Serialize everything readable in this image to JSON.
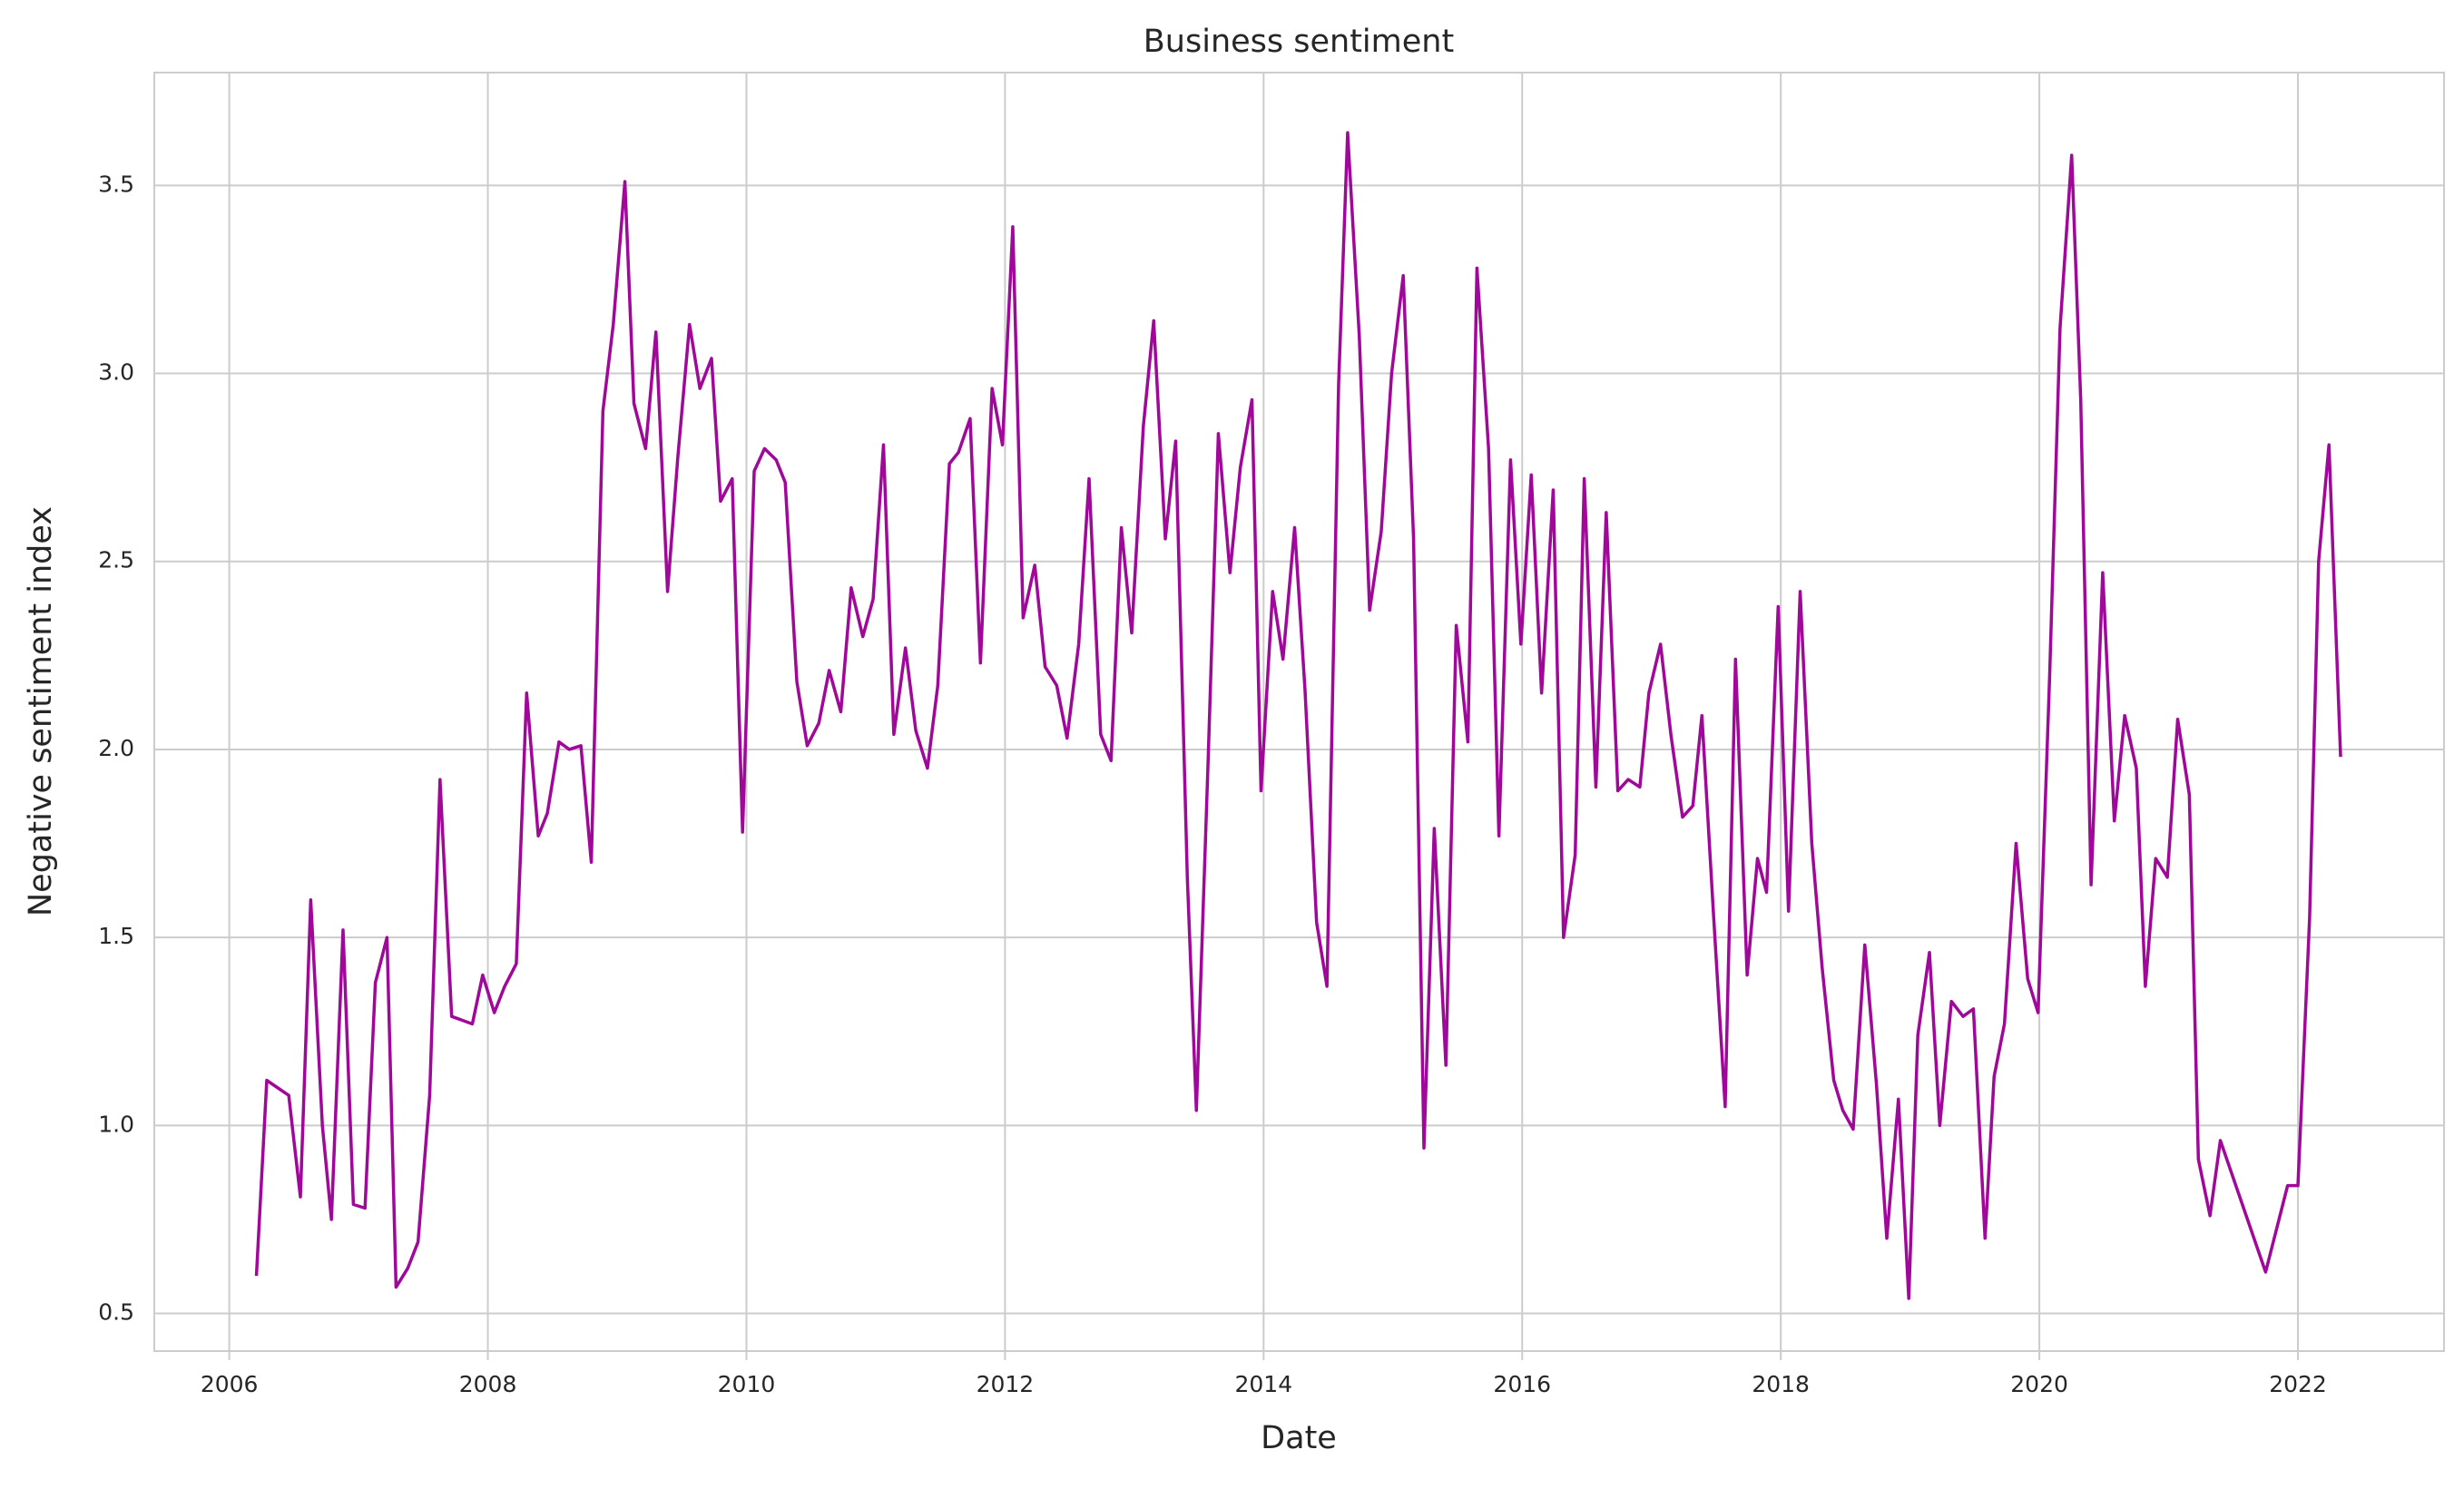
{
  "chart_data": {
    "type": "line",
    "title": "Business sentiment",
    "x_label": "Date",
    "y_label": "Negative sentiment index",
    "color": "#a0089a",
    "grid": true,
    "xlim": [
      2005.42,
      2023.13
    ],
    "xticks": [
      2006,
      2008,
      2010,
      2012,
      2014,
      2016,
      2018,
      2020,
      2022
    ],
    "ylim": [
      0.4,
      3.8
    ],
    "yticks": [
      0.5,
      {
        "value": 1,
        "label": "1.0"
      },
      1.5,
      {
        "value": 2,
        "label": "2.0"
      },
      2.5,
      {
        "value": 3,
        "label": "3.0"
      },
      3.5
    ],
    "x": [
      2006.21,
      2006.29,
      2006.46,
      2006.55,
      2006.63,
      2006.72,
      2006.79,
      2006.88,
      2006.96,
      2007.05,
      2007.13,
      2007.22,
      2007.29,
      2007.38,
      2007.46,
      2007.55,
      2007.63,
      2007.72,
      2007.88,
      2007.96,
      2008.05,
      2008.13,
      2008.22,
      2008.3,
      2008.39,
      2008.46,
      2008.55,
      2008.63,
      2008.72,
      2008.8,
      2008.89,
      2008.97,
      2009.06,
      2009.13,
      2009.22,
      2009.3,
      2009.39,
      2009.47,
      2009.56,
      2009.64,
      2009.73,
      2009.8,
      2009.89,
      2009.97,
      2010.06,
      2010.14,
      2010.23,
      2010.3,
      2010.39,
      2010.47,
      2010.56,
      2010.64,
      2010.73,
      2010.81,
      2010.9,
      2010.98,
      2011.06,
      2011.14,
      2011.23,
      2011.31,
      2011.4,
      2011.48,
      2011.57,
      2011.64,
      2011.73,
      2011.81,
      2011.9,
      2011.98,
      2012.06,
      2012.14,
      2012.23,
      2012.31,
      2012.4,
      2012.48,
      2012.57,
      2012.65,
      2012.74,
      2012.82,
      2012.9,
      2012.98,
      2013.07,
      2013.15,
      2013.24,
      2013.32,
      2013.41,
      2013.48,
      2013.57,
      2013.65,
      2013.74,
      2013.82,
      2013.91,
      2013.98,
      2014.07,
      2014.15,
      2014.24,
      2014.32,
      2014.41,
      2014.49,
      2014.58,
      2014.65,
      2014.74,
      2014.82,
      2014.91,
      2014.99,
      2015.08,
      2015.16,
      2015.24,
      2015.32,
      2015.41,
      2015.49,
      2015.58,
      2015.65,
      2015.74,
      2015.82,
      2015.91,
      2015.99,
      2016.07,
      2016.15,
      2016.24,
      2016.32,
      2016.41,
      2016.48,
      2016.57,
      2016.65,
      2016.74,
      2016.82,
      2016.91,
      2016.98,
      2017.07,
      2017.15,
      2017.24,
      2017.32,
      2017.39,
      2017.48,
      2017.57,
      2017.65,
      2017.74,
      2017.82,
      2017.89,
      2017.98,
      2018.06,
      2018.15,
      2018.24,
      2018.32,
      2018.41,
      2018.48,
      2018.56,
      2018.65,
      2018.74,
      2018.82,
      2018.91,
      2018.99,
      2019.06,
      2019.15,
      2019.23,
      2019.32,
      2019.41,
      2019.49,
      2019.58,
      2019.65,
      2019.73,
      2019.82,
      2019.91,
      2019.99,
      2020.08,
      2020.16,
      2020.25,
      2020.32,
      2020.4,
      2020.49,
      2020.58,
      2020.66,
      2020.75,
      2020.82,
      2020.9,
      2020.99,
      2021.07,
      2021.16,
      2021.23,
      2021.32,
      2021.4,
      2021.75,
      2021.92,
      2022.0,
      2022.09,
      2022.16,
      2022.24,
      2022.33
    ],
    "values": [
      0.6,
      1.12,
      1.08,
      0.81,
      1.6,
      1.0,
      0.75,
      1.52,
      0.79,
      0.78,
      1.38,
      1.5,
      0.57,
      0.62,
      0.69,
      1.08,
      1.92,
      1.29,
      1.27,
      1.4,
      1.3,
      1.37,
      1.43,
      2.15,
      1.77,
      1.83,
      2.02,
      2.0,
      2.01,
      1.7,
      2.9,
      3.13,
      3.51,
      2.92,
      2.8,
      3.11,
      2.42,
      2.78,
      3.13,
      2.96,
      3.04,
      2.66,
      2.72,
      1.78,
      2.74,
      2.8,
      2.77,
      2.71,
      2.18,
      2.01,
      2.07,
      2.21,
      2.1,
      2.43,
      2.3,
      2.4,
      2.81,
      2.04,
      2.27,
      2.05,
      1.95,
      2.17,
      2.76,
      2.79,
      2.88,
      2.23,
      2.96,
      2.81,
      3.39,
      2.35,
      2.49,
      2.22,
      2.17,
      2.03,
      2.28,
      2.72,
      2.04,
      1.97,
      2.59,
      2.31,
      2.86,
      3.14,
      2.56,
      2.82,
      1.66,
      1.04,
      1.96,
      2.84,
      2.47,
      2.75,
      2.93,
      1.89,
      2.42,
      2.24,
      2.59,
      2.16,
      1.54,
      1.37,
      2.97,
      3.64,
      3.1,
      2.37,
      2.58,
      3.0,
      3.26,
      2.56,
      0.94,
      1.79,
      1.16,
      2.33,
      2.02,
      3.28,
      2.8,
      1.77,
      2.77,
      2.28,
      2.73,
      2.15,
      2.69,
      1.5,
      1.72,
      2.72,
      1.9,
      2.63,
      1.89,
      1.92,
      1.9,
      2.15,
      2.28,
      2.04,
      1.82,
      1.85,
      2.09,
      1.56,
      1.05,
      2.24,
      1.4,
      1.71,
      1.62,
      2.38,
      1.57,
      2.42,
      1.75,
      1.42,
      1.12,
      1.04,
      0.99,
      1.48,
      1.11,
      0.7,
      1.07,
      0.54,
      1.24,
      1.46,
      1.0,
      1.33,
      1.29,
      1.31,
      0.7,
      1.13,
      1.27,
      1.75,
      1.39,
      1.3,
      2.2,
      3.12,
      3.58,
      2.93,
      1.64,
      2.47,
      1.81,
      2.09,
      1.95,
      1.37,
      1.71,
      1.66,
      2.08,
      1.88,
      0.91,
      0.76,
      0.96,
      0.61,
      0.84,
      0.84,
      1.55,
      2.5,
      2.81,
      1.98
    ]
  }
}
